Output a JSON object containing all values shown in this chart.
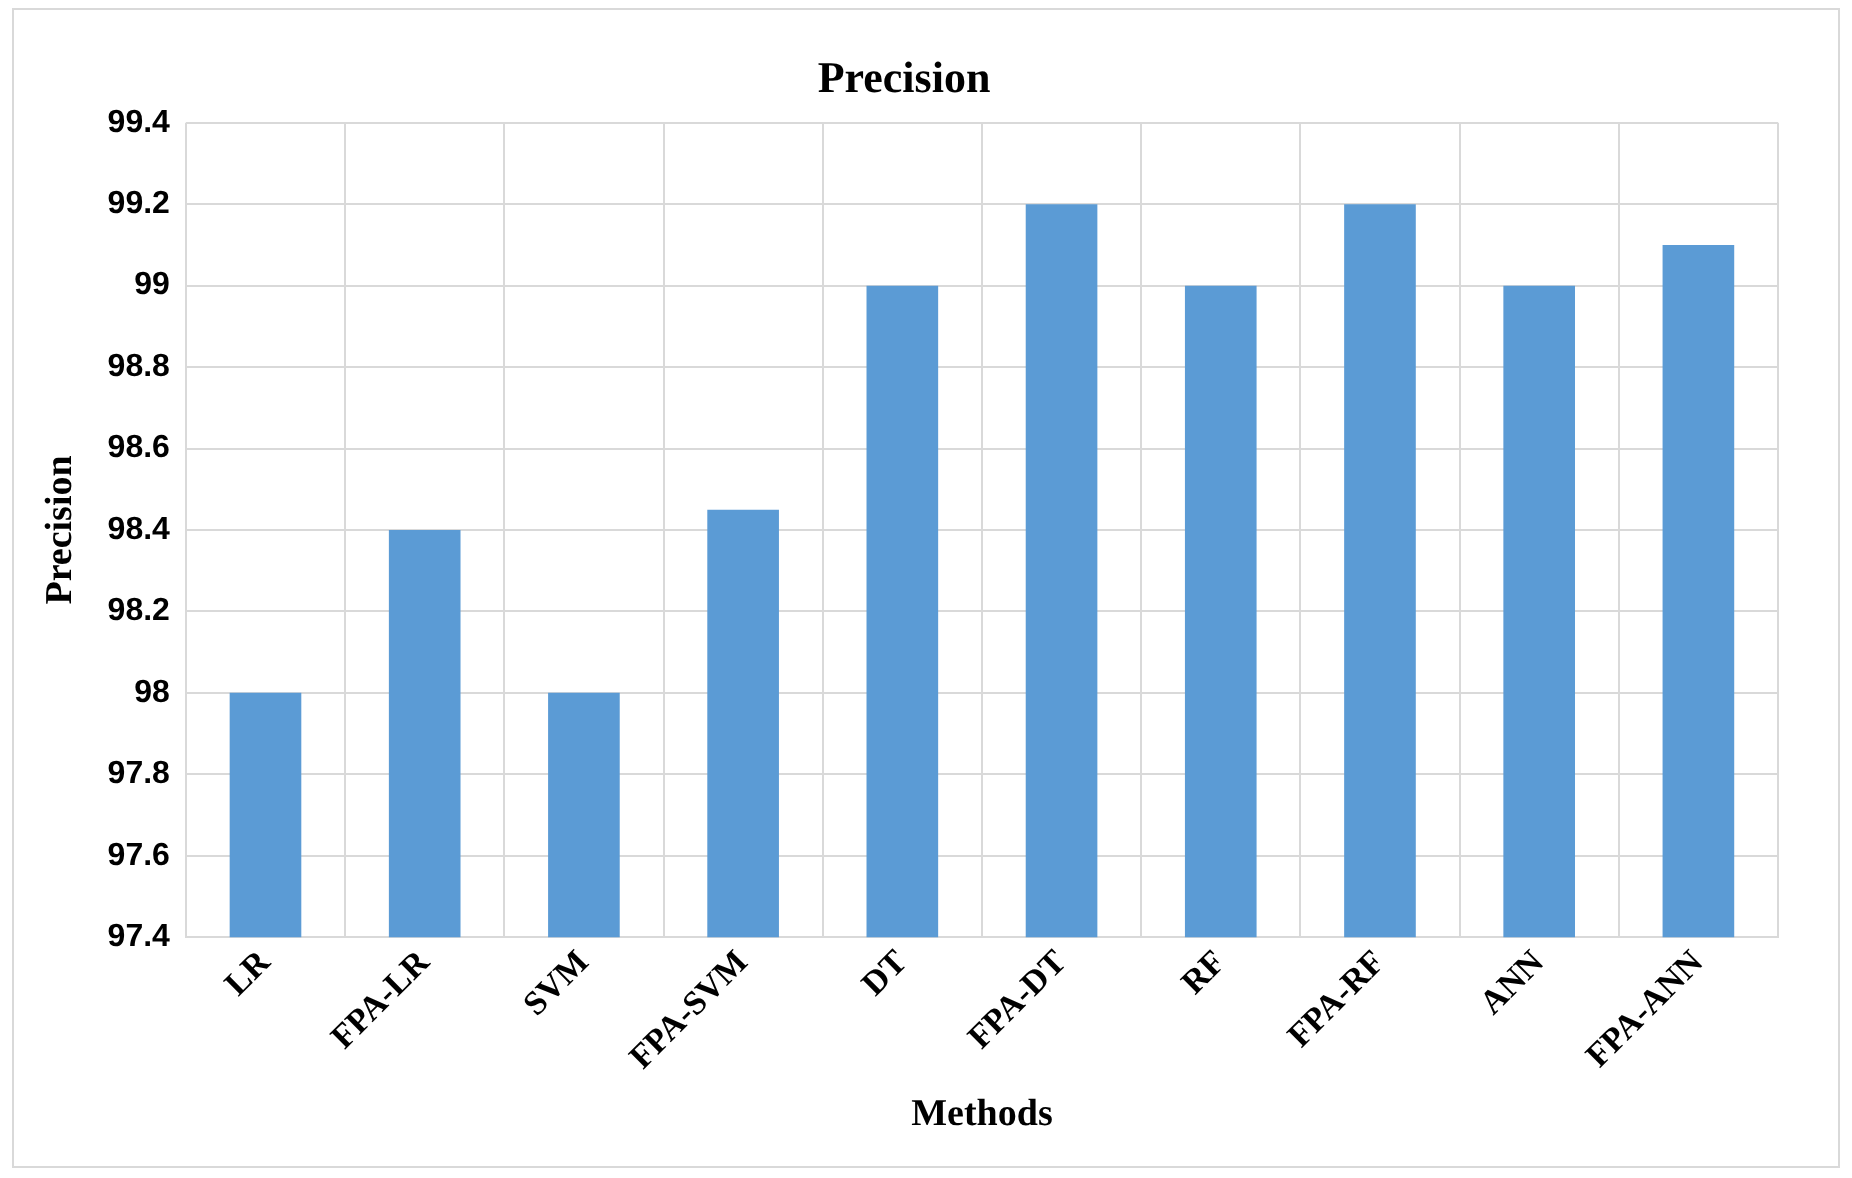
{
  "chart_data": {
    "type": "bar",
    "title": "Precision",
    "xlabel": "Methods",
    "ylabel": "Precision",
    "categories": [
      "LR",
      "FPA-LR",
      "SVM",
      "FPA-SVM",
      "DT",
      "FPA-DT",
      "RF",
      "FPA-RF",
      "ANN",
      "FPA-ANN"
    ],
    "values": [
      98,
      98.4,
      98,
      98.45,
      99,
      99.2,
      99,
      99.2,
      99,
      99.1
    ],
    "color": "#5b9bd5",
    "ylim": [
      97.4,
      99.4
    ],
    "yticks": [
      97.4,
      97.6,
      97.8,
      98,
      98.2,
      98.4,
      98.6,
      98.8,
      99,
      99.2,
      99.4
    ],
    "grid": true,
    "legend": false
  }
}
